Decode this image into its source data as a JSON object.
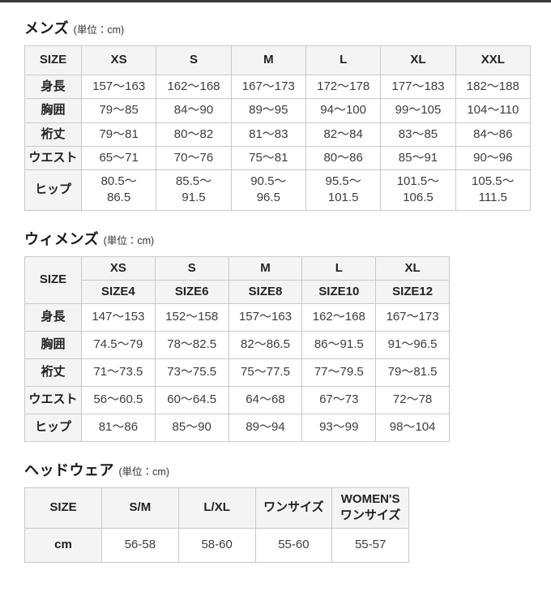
{
  "tables": {
    "mens": {
      "title": "メンズ",
      "unit": "(単位：cm)",
      "corner": "SIZE",
      "columns": [
        "XS",
        "S",
        "M",
        "L",
        "XL",
        "XXL"
      ],
      "rows": [
        {
          "label": "身長",
          "values": [
            "157～163",
            "162～168",
            "167～173",
            "172～178",
            "177～183",
            "182～188"
          ]
        },
        {
          "label": "胸囲",
          "values": [
            "79～85",
            "84～90",
            "89～95",
            "94～100",
            "99～105",
            "104～110"
          ]
        },
        {
          "label": "裄丈",
          "values": [
            "79～81",
            "80～82",
            "81～83",
            "82～84",
            "83～85",
            "84～86"
          ]
        },
        {
          "label": "ウエスト",
          "values": [
            "65～71",
            "70～76",
            "75～81",
            "80～86",
            "85～91",
            "90～96"
          ]
        },
        {
          "label": "ヒップ",
          "values": [
            "80.5～\n86.5",
            "85.5～\n91.5",
            "90.5～\n96.5",
            "95.5～\n101.5",
            "101.5～\n106.5",
            "105.5～\n111.5"
          ]
        }
      ]
    },
    "womens": {
      "title": "ウィメンズ",
      "unit": "(単位：cm)",
      "corner": "SIZE",
      "columns": [
        "XS",
        "S",
        "M",
        "L",
        "XL"
      ],
      "sub_columns": [
        "SIZE4",
        "SIZE6",
        "SIZE8",
        "SIZE10",
        "SIZE12"
      ],
      "rows": [
        {
          "label": "身長",
          "values": [
            "147～153",
            "152～158",
            "157～163",
            "162～168",
            "167～173"
          ]
        },
        {
          "label": "胸囲",
          "values": [
            "74.5～79",
            "78～82.5",
            "82～86.5",
            "86～91.5",
            "91～96.5"
          ]
        },
        {
          "label": "裄丈",
          "values": [
            "71～73.5",
            "73～75.5",
            "75～77.5",
            "77～79.5",
            "79～81.5"
          ]
        },
        {
          "label": "ウエスト",
          "values": [
            "56～60.5",
            "60～64.5",
            "64～68",
            "67～73",
            "72～78"
          ]
        },
        {
          "label": "ヒップ",
          "values": [
            "81～86",
            "85～90",
            "89～94",
            "93～99",
            "98～104"
          ]
        }
      ]
    },
    "headwear": {
      "title": "ヘッドウェア",
      "unit": "(単位：cm)",
      "corner": "SIZE",
      "columns": [
        "S/M",
        "L/XL",
        "ワンサイズ",
        "WOMEN'S\nワンサイズ"
      ],
      "rows": [
        {
          "label": "cm",
          "values": [
            "56-58",
            "58-60",
            "55-60",
            "55-57"
          ]
        }
      ]
    }
  }
}
